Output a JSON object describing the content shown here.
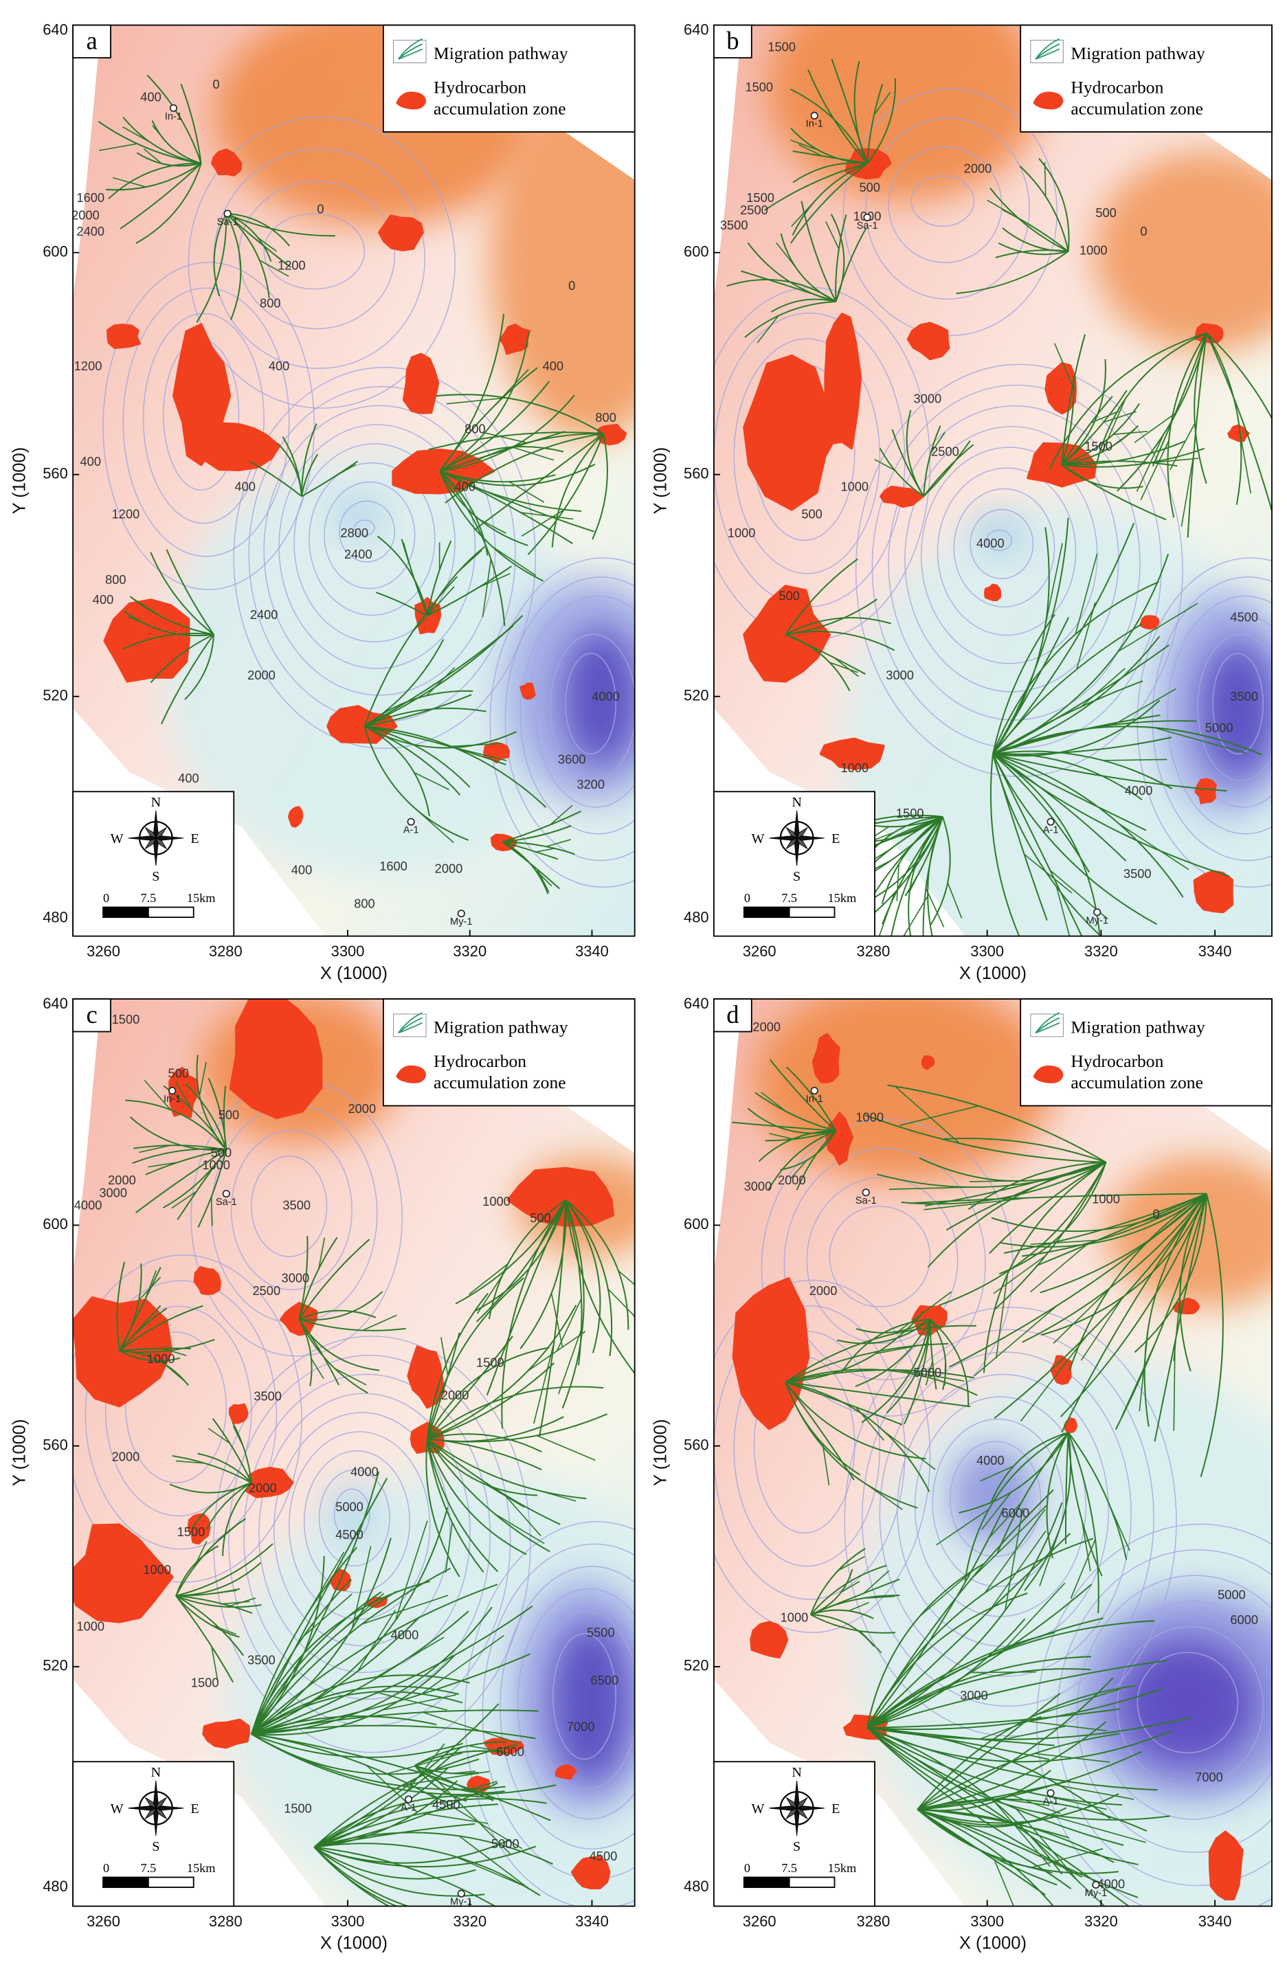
{
  "panels": [
    {
      "label": "a",
      "xlim": [
        3255,
        3347
      ],
      "ylim": [
        476.8,
        641
      ],
      "xticks": [
        3260,
        3280,
        3300,
        3320,
        3340
      ],
      "yticks": [
        480,
        520,
        560,
        600,
        640
      ],
      "contour_labels": [
        "400",
        "0",
        "1600",
        "2000",
        "2400",
        "0",
        "1200",
        "0",
        "800",
        "1200",
        "400",
        "400",
        "800",
        "800",
        "1200",
        "400",
        "400",
        "2800",
        "2400",
        "800",
        "400",
        "2400",
        "2000",
        "3600",
        "3200",
        "4000",
        "400",
        "1600",
        "2000",
        "400",
        "800",
        "400"
      ],
      "wells": [
        "In-1",
        "Sa-1",
        "A-1",
        "My-1"
      ]
    },
    {
      "label": "b",
      "xlim": [
        3252,
        3350
      ],
      "ylim": [
        476.8,
        641
      ],
      "xticks": [
        3260,
        3280,
        3300,
        3320,
        3340
      ],
      "yticks": [
        480,
        520,
        560,
        600,
        640
      ],
      "contour_labels": [
        "1500",
        "1500",
        "2000",
        "500",
        "1000",
        "1500",
        "3500",
        "2500",
        "500",
        "1000",
        "0",
        "3000",
        "2500",
        "1500",
        "1000",
        "500",
        "4000",
        "1000",
        "500",
        "4500",
        "3500",
        "5000",
        "3000",
        "4000",
        "1000",
        "1500",
        "3500"
      ],
      "wells": [
        "In-1",
        "Sa-1",
        "A-1",
        "My-1"
      ]
    },
    {
      "label": "c",
      "xlim": [
        3255,
        3347
      ],
      "ylim": [
        476.6,
        641
      ],
      "xticks": [
        3260,
        3280,
        3300,
        3320,
        3340
      ],
      "yticks": [
        480,
        520,
        560,
        600,
        640
      ],
      "contour_labels": [
        "1500",
        "500",
        "500",
        "500",
        "1000",
        "2000",
        "3000",
        "4000",
        "2000",
        "3500",
        "1000",
        "500",
        "3000",
        "2500",
        "1000",
        "3500",
        "1500",
        "2000",
        "2000",
        "4000",
        "5000",
        "4500",
        "2000",
        "1500",
        "1000",
        "1000",
        "3500",
        "4000",
        "1500",
        "5500",
        "6500",
        "7000",
        "6000",
        "1500",
        "4500",
        "5000",
        "4500"
      ],
      "wells": [
        "In-1",
        "Sa-1",
        "A-1",
        "My-1"
      ]
    },
    {
      "label": "d",
      "xlim": [
        3252,
        3350
      ],
      "ylim": [
        476.6,
        641
      ],
      "xticks": [
        3260,
        3280,
        3300,
        3320,
        3340
      ],
      "yticks": [
        480,
        520,
        560,
        600,
        640
      ],
      "contour_labels": [
        "2000",
        "1000",
        "2000",
        "3000",
        "0",
        "1000",
        "2000",
        "5000",
        "4000",
        "6000",
        "1000",
        "3000",
        "5000",
        "6000",
        "7000",
        "4000"
      ],
      "wells": [
        "In-1",
        "Sa-1",
        "A-1",
        "My-1"
      ]
    }
  ],
  "x_label": "X (1000)",
  "y_label": "Y (1000)",
  "legend": {
    "pathway": "Migration pathway",
    "zone": [
      "Hydrocarbon",
      "accumulation zone"
    ]
  },
  "compass": {
    "north": "N",
    "south": "S",
    "east": "E",
    "west": "W"
  },
  "scale": [
    "0",
    "7.5",
    "15km"
  ]
}
